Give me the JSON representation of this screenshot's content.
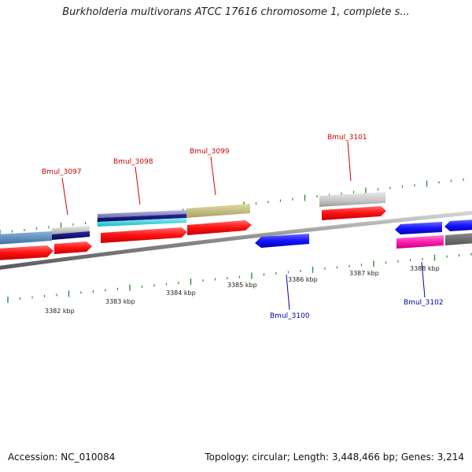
{
  "header": {
    "title": "Burkholderia multivorans ATCC 17616 chromosome 1, complete s..."
  },
  "footer": {
    "accession": "Accession: NC_010084",
    "topology": "Topology: circular; Length: 3,448,466 bp; Genes: 3,214"
  },
  "colors": {
    "backbone": "#8a8a8a",
    "tick": "#2f8f2f",
    "label_forward": "#cc0000",
    "label_reverse": "#0000aa",
    "cds_forward": "#ff1a1a",
    "cds_reverse": "#1a1aff"
  },
  "scale": {
    "tick_labels": [
      "3382 kbp",
      "3383 kbp",
      "3384 kbp",
      "3385 kbp",
      "3386 kbp",
      "3387 kbp",
      "3388 kbp"
    ]
  },
  "genes": [
    {
      "id": "Bmul_3097",
      "strand": "forward"
    },
    {
      "id": "Bmul_3098",
      "strand": "forward"
    },
    {
      "id": "Bmul_3099",
      "strand": "forward"
    },
    {
      "id": "Bmul_3101",
      "strand": "forward"
    },
    {
      "id": "Bmul_3100",
      "strand": "reverse"
    },
    {
      "id": "Bmul_3102",
      "strand": "reverse"
    }
  ]
}
